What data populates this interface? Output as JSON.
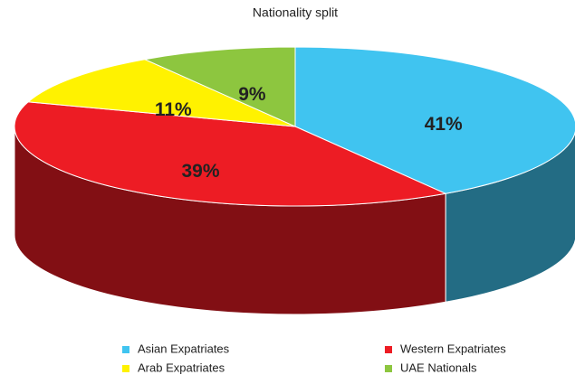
{
  "chart_data": {
    "type": "pie3d",
    "title": "Nationality split",
    "categories": [
      "Asian Expatriates",
      "Western Expatriates",
      "Arab Expatriates",
      "UAE Nationals"
    ],
    "values": [
      41,
      39,
      11,
      9
    ],
    "value_labels": [
      "41%",
      "39%",
      "11%",
      "9%"
    ],
    "colors": [
      "#40c4f0",
      "#ed1c24",
      "#fff200",
      "#8dc63f"
    ]
  }
}
